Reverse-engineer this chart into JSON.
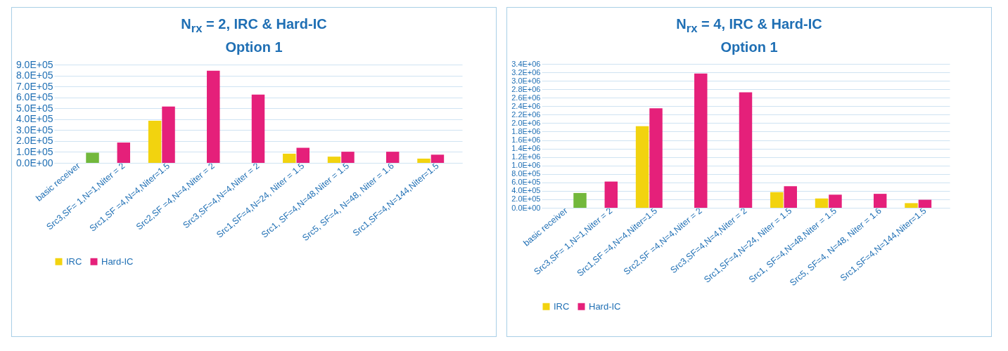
{
  "chart_data": [
    {
      "type": "bar",
      "title": "N$_{rx}$ = 2, IRC & Hard-IC",
      "subtitle": "Option 1",
      "categories": [
        "basic receiver",
        "Src3,SF= 1,N=1,Niter = 2",
        "Src1,SF =4,N=4,Niter=1.5",
        "Src2,SF =4,N=4,Niter = 2",
        "Src3,SF=4,N=4,Niter = 2",
        "Src1,SF=4,N=24, Niter = 1.5",
        "Src1, SF=4,N=48,Niter = 1.5",
        "Src5, SF=4, N=48, Niter = 1.6",
        "Src1,SF=4,N=144,Niter=1.5"
      ],
      "series": [
        {
          "name": "IRC",
          "color": "#f2d30f",
          "values": [
            null,
            null,
            385000,
            null,
            null,
            84000,
            57000,
            null,
            39000
          ]
        },
        {
          "name": "Hard-IC",
          "color": "#e5207a",
          "values": [
            null,
            186000,
            516000,
            844000,
            625000,
            138000,
            102000,
            102000,
            75000
          ]
        },
        {
          "color": "#72b83c",
          "values": [
            93000,
            null,
            null,
            null,
            null,
            null,
            null,
            null,
            null
          ]
        }
      ],
      "ylim": [
        0,
        900000
      ],
      "yticks": [
        {
          "value": 0,
          "label": "0.0E+00"
        },
        {
          "value": 100000,
          "label": "1.0E+05"
        },
        {
          "value": 200000,
          "label": "2.0E+05"
        },
        {
          "value": 300000,
          "label": "3.0E+05"
        },
        {
          "value": 400000,
          "label": "4.0E+05"
        },
        {
          "value": 500000,
          "label": "5.0E+05"
        },
        {
          "value": 600000,
          "label": "6.0E+05"
        },
        {
          "value": 700000,
          "label": "7.0E+05"
        },
        {
          "value": 800000,
          "label": "8.0E+05"
        },
        {
          "value": 900000,
          "label": "9.0E+05"
        }
      ],
      "grid": "y",
      "legend": "bottom"
    },
    {
      "type": "bar",
      "title": "N$_{rx}$ = 4, IRC & Hard-IC",
      "subtitle": "Option 1",
      "categories": [
        "basic receiver",
        "Src3,SF= 1,N=1,Niter = 2",
        "Src1,SF =4,N=4,Niter=1.5",
        "Src2,SF =4,N=4,Niter = 2",
        "Src3,SF=4,N=4,Niter = 2",
        "Src1,SF=4,N=24, Niter = 1.5",
        "Src1, SF=4,N=48,Niter = 1.5",
        "Src5, SF=4, N=48, Niter = 1.6",
        "Src1,SF=4,N=144,Niter=1.5"
      ],
      "series": [
        {
          "name": "IRC",
          "color": "#f2d30f",
          "values": [
            null,
            null,
            1930000,
            null,
            null,
            370000,
            220000,
            null,
            110000
          ]
        },
        {
          "name": "Hard-IC",
          "color": "#e5207a",
          "values": [
            null,
            620000,
            2350000,
            3170000,
            2730000,
            510000,
            310000,
            330000,
            190000
          ]
        },
        {
          "color": "#72b83c",
          "values": [
            350000,
            null,
            null,
            null,
            null,
            null,
            null,
            null,
            null
          ]
        }
      ],
      "ylim": [
        0,
        3400000
      ],
      "yticks": [
        {
          "value": 0,
          "label": "0.0E+00"
        },
        {
          "value": 200000,
          "label": "2.0E+05"
        },
        {
          "value": 400000,
          "label": "4.0E+05"
        },
        {
          "value": 600000,
          "label": "6.0E+05"
        },
        {
          "value": 800000,
          "label": "8.0E+05"
        },
        {
          "value": 1000000,
          "label": "1.0E+06"
        },
        {
          "value": 1200000,
          "label": "1.2E+06"
        },
        {
          "value": 1400000,
          "label": "1.4E+06"
        },
        {
          "value": 1600000,
          "label": "1.6E+06"
        },
        {
          "value": 1800000,
          "label": "1.8E+06"
        },
        {
          "value": 2000000,
          "label": "2.0E+06"
        },
        {
          "value": 2200000,
          "label": "2.2E+06"
        },
        {
          "value": 2400000,
          "label": "2.4E+06"
        },
        {
          "value": 2600000,
          "label": "2.6E+06"
        },
        {
          "value": 2800000,
          "label": "2.8E+06"
        },
        {
          "value": 3000000,
          "label": "3.0E+06"
        },
        {
          "value": 3200000,
          "label": "3.2E+06"
        },
        {
          "value": 3400000,
          "label": "3.4E+06"
        }
      ],
      "grid": "y",
      "legend": "bottom"
    }
  ]
}
